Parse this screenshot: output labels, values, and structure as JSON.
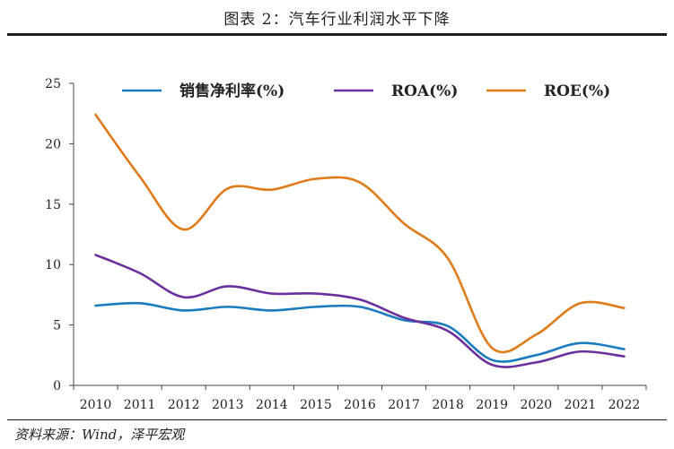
{
  "figure": {
    "title": "图表 2：汽车行业利润水平下降",
    "source": "资料来源：Wind，泽平宏观"
  },
  "chart_data": {
    "type": "line",
    "categories": [
      "2010",
      "2011",
      "2012",
      "2013",
      "2014",
      "2015",
      "2016",
      "2017",
      "2018",
      "2019",
      "2020",
      "2021",
      "2022"
    ],
    "x": [
      2010,
      2011,
      2012,
      2013,
      2014,
      2015,
      2016,
      2017,
      2018,
      2019,
      2020,
      2021,
      2022
    ],
    "ylim": [
      0,
      25
    ],
    "yticks": [
      0,
      5,
      10,
      15,
      20,
      25
    ],
    "grid": false,
    "legend_position": "top",
    "series": [
      {
        "name": "销售净利率(%)",
        "color": "#1a7cbf",
        "values": [
          6.6,
          6.8,
          6.2,
          6.5,
          6.2,
          6.5,
          6.5,
          5.4,
          4.9,
          2.1,
          2.5,
          3.5,
          3.0
        ]
      },
      {
        "name": "ROA(%)",
        "color": "#6b2f9e",
        "values": [
          10.8,
          9.3,
          7.3,
          8.2,
          7.6,
          7.6,
          7.1,
          5.6,
          4.5,
          1.7,
          1.9,
          2.8,
          2.4
        ]
      },
      {
        "name": "ROE(%)",
        "color": "#e07b19",
        "values": [
          22.4,
          17.3,
          12.9,
          16.3,
          16.2,
          17.1,
          16.8,
          13.4,
          10.5,
          3.1,
          4.2,
          6.8,
          6.4
        ]
      }
    ]
  }
}
